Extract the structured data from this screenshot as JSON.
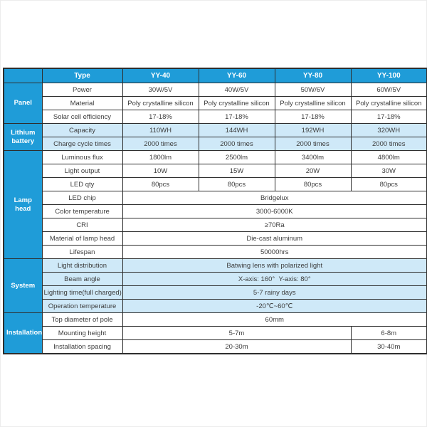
{
  "page": {
    "background": "#ffffff",
    "frame_border": "#ececec"
  },
  "colors": {
    "header_blue": "#1f9cd8",
    "sidebar_blue": "#1f9cd8",
    "tinted_row_blue": "#cfe9f8",
    "border_dark": "#2e2e2e",
    "cell_text": "#3d3d3d",
    "header_text": "#ffffff"
  },
  "table": {
    "header": {
      "type_label": "Type",
      "columns": [
        "YY-40",
        "YY-60",
        "YY-80",
        "YY-100"
      ]
    },
    "sections": [
      {
        "name": "Panel",
        "rows": [
          {
            "label": "Power",
            "values": [
              "30W/5V",
              "40W/5V",
              "50W/6V",
              "60W/5V"
            ]
          },
          {
            "label": "Material",
            "values": [
              "Poly crystalline silicon",
              "Poly crystalline silicon",
              "Poly crystalline silicon",
              "Poly crystalline silicon"
            ]
          },
          {
            "label": "Solar cell efficiency",
            "values": [
              "17-18%",
              "17-18%",
              "17-18%",
              "17-18%"
            ]
          }
        ]
      },
      {
        "name": "Lithium battery",
        "rows": [
          {
            "label": "Capacity",
            "values": [
              "110WH",
              "144WH",
              "192WH",
              "320WH"
            ]
          },
          {
            "label": "Charge cycle times",
            "values": [
              "2000 times",
              "2000 times",
              "2000 times",
              "2000 times"
            ]
          }
        ]
      },
      {
        "name": "Lamp head",
        "rows": [
          {
            "label": "Luminous flux",
            "values": [
              "1800lm",
              "2500lm",
              "3400lm",
              "4800lm"
            ]
          },
          {
            "label": "Light output",
            "values": [
              "10W",
              "15W",
              "20W",
              "30W"
            ]
          },
          {
            "label": "LED qty",
            "values": [
              "80pcs",
              "80pcs",
              "80pcs",
              "80pcs"
            ]
          },
          {
            "label": "LED chip",
            "merged": "Bridgelux"
          },
          {
            "label": "Color temperature",
            "merged": "3000-6000K"
          },
          {
            "label": "CRI",
            "merged": "≥70Ra"
          },
          {
            "label": "Material of lamp head",
            "merged": "Die-cast aluminum"
          },
          {
            "label": "Lifespan",
            "merged": "50000hrs"
          }
        ]
      },
      {
        "name": "System",
        "rows": [
          {
            "label": "Light distribution",
            "merged": "Batwing lens with polarized light"
          },
          {
            "label": "Beam angle",
            "merged": "X-axis: 160°  Y-axis: 80°"
          },
          {
            "label": "Lighting time(full charged)",
            "merged": "5-7 rainy days"
          },
          {
            "label": "Operation temperature",
            "merged": "-20℃~60℃"
          }
        ]
      },
      {
        "name": "Installation",
        "rows": [
          {
            "label": "Top diameter of pole",
            "merged": "60mm"
          },
          {
            "label": "Mounting height",
            "wide": "5-7m",
            "last": "6-8m"
          },
          {
            "label": "Installation spacing",
            "wide": "20-30m",
            "last": "30-40m"
          }
        ]
      }
    ]
  }
}
